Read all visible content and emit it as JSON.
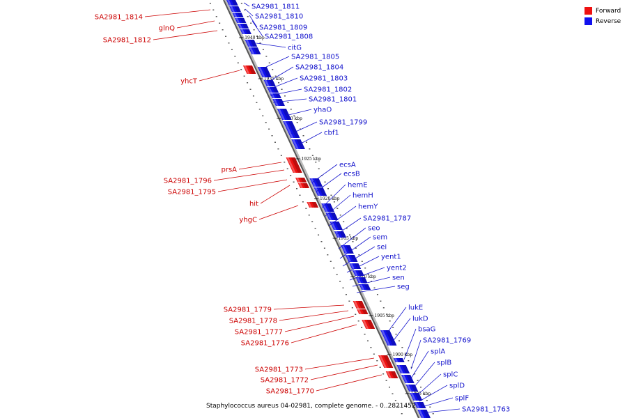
{
  "legend": {
    "forward_label": "Forward",
    "reverse_label": "Reverse",
    "forward_color": "#ee1111",
    "reverse_color": "#1111ee"
  },
  "caption": "Staphylococcus aureus 04-02981, complete genome. - 0..2821452",
  "genome": {
    "strand_colors": {
      "forward": "#ee1111",
      "reverse": "#1111ee",
      "label_forward": "#cc0000",
      "label_reverse": "#1111cc"
    },
    "kbp_ticks": [
      "1940 kbp",
      "1935 kbp",
      "1930 kbp",
      "1925 kbp",
      "1920 kbp",
      "1915 kbp",
      "1910 kbp",
      "1905 kbp",
      "1900 kbp",
      "1895 kbp"
    ],
    "forward_genes": [
      "SA2981_1814",
      "glnQ",
      "SA2981_1812",
      "yhcT",
      "prsA",
      "SA2981_1796",
      "SA2981_1795",
      "hit",
      "yhgC",
      "SA2981_1779",
      "SA2981_1778",
      "SA2981_1777",
      "SA2981_1776",
      "SA2981_1773",
      "SA2981_1772",
      "SA2981_1770"
    ],
    "reverse_genes": [
      "SA2981_1811",
      "SA2981_1810",
      "SA2981_1809",
      "SA2981_1808",
      "citG",
      "SA2981_1805",
      "SA2981_1804",
      "SA2981_1803",
      "SA2981_1802",
      "SA2981_1801",
      "yhaO",
      "SA2981_1799",
      "cbf1",
      "ecsA",
      "ecsB",
      "hemE",
      "hemH",
      "hemY",
      "SA2981_1787",
      "seo",
      "sem",
      "sei",
      "yent1",
      "yent2",
      "sen",
      "seg",
      "lukE",
      "lukD",
      "bsaG",
      "SA2981_1769",
      "splA",
      "splB",
      "splC",
      "splD",
      "splF",
      "SA2981_1763"
    ]
  }
}
